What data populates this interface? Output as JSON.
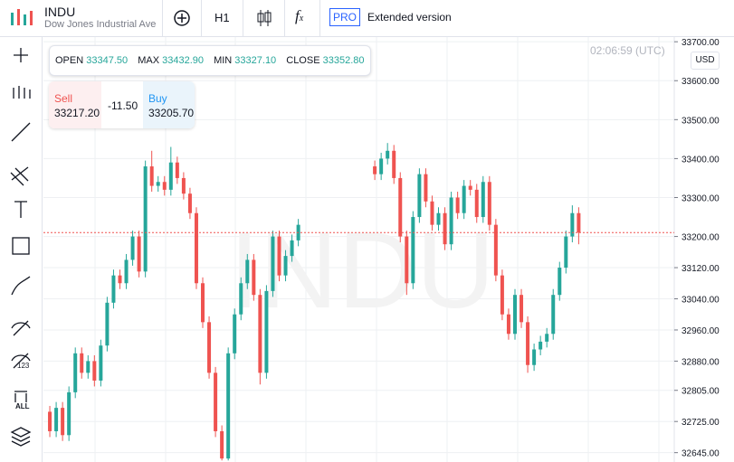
{
  "header": {
    "symbol": "INDU",
    "name": "Dow Jones Industrial Ave",
    "interval": "H1",
    "pro": "PRO",
    "extended": "Extended version"
  },
  "ohlc": {
    "open_label": "OPEN",
    "open": "33347.50",
    "max_label": "MAX",
    "max": "33432.90",
    "min_label": "MIN",
    "min": "33327.10",
    "close_label": "CLOSE",
    "close": "33352.80"
  },
  "trade": {
    "sell_label": "Sell",
    "sell": "33217.20",
    "spread": "-11.50",
    "buy_label": "Buy",
    "buy": "33205.70"
  },
  "clock": "02:06:59 (UTC)",
  "currency": "USD",
  "toolbar": {
    "badge_1": "123",
    "badge_2": "ALL"
  },
  "chart_data": {
    "type": "candlestick",
    "watermark": "INDU",
    "up_color": "#26a69a",
    "down_color": "#ef5350",
    "x": [
      0,
      1,
      2,
      3,
      4,
      5,
      6,
      7,
      8,
      9,
      10,
      11,
      12,
      13,
      14,
      15,
      16,
      17,
      18,
      19,
      20,
      21,
      22,
      23,
      24,
      25,
      26,
      27,
      28,
      29,
      30,
      31,
      32,
      33,
      34,
      35,
      36,
      37,
      38,
      39,
      51,
      52,
      53,
      54,
      55,
      56,
      57,
      58,
      59,
      60,
      61,
      62,
      63,
      64,
      65,
      66,
      67,
      68,
      69,
      70,
      71,
      72,
      73,
      74,
      75,
      76,
      77,
      78,
      79,
      80,
      81,
      82,
      83
    ],
    "open": [
      32750,
      32700,
      32760,
      32690,
      32800,
      32900,
      32850,
      32880,
      32830,
      32920,
      33030,
      33100,
      33080,
      33140,
      33200,
      33110,
      33380,
      33330,
      33340,
      33320,
      33390,
      33350,
      33310,
      33260,
      33080,
      32980,
      32850,
      32700,
      32630,
      32900,
      33000,
      33080,
      33140,
      33050,
      32850,
      33060,
      33200,
      33100,
      33150,
      33190,
      33380,
      33360,
      33400,
      33420,
      33350,
      33200,
      33080,
      33250,
      33360,
      33290,
      33230,
      33260,
      33180,
      33300,
      33260,
      33330,
      33320,
      33250,
      33340,
      33230,
      33100,
      33000,
      32950,
      33050,
      32980,
      32870,
      32910,
      32930,
      32950,
      33050,
      33120,
      33200,
      33260
    ],
    "high": [
      32765,
      32775,
      32775,
      32815,
      32915,
      32915,
      32895,
      32895,
      32935,
      33045,
      33115,
      33115,
      33155,
      33215,
      33215,
      33395,
      33420,
      33355,
      33355,
      33430,
      33405,
      33365,
      33325,
      33275,
      33095,
      32995,
      32865,
      32715,
      32915,
      33015,
      33095,
      33155,
      33155,
      33065,
      33075,
      33215,
      33215,
      33165,
      33205,
      33245,
      33395,
      33415,
      33440,
      33435,
      33365,
      33215,
      33265,
      33375,
      33375,
      33305,
      33275,
      33275,
      33315,
      33315,
      33345,
      33345,
      33335,
      33355,
      33355,
      33245,
      33115,
      33015,
      33065,
      33065,
      32995,
      32925,
      32945,
      32965,
      33065,
      33135,
      33215,
      33280,
      33275
    ],
    "low": [
      32685,
      32685,
      32675,
      32675,
      32785,
      32835,
      32835,
      32815,
      32815,
      32905,
      33015,
      33065,
      33065,
      33125,
      33095,
      33095,
      33315,
      33315,
      33305,
      33305,
      33335,
      33295,
      33245,
      33065,
      32965,
      32835,
      32685,
      32625,
      32625,
      32885,
      32985,
      33065,
      33035,
      32820,
      32835,
      33045,
      33085,
      33085,
      33135,
      33175,
      33345,
      33345,
      33385,
      33335,
      33185,
      33050,
      33065,
      33235,
      33275,
      33215,
      33215,
      33165,
      33165,
      33245,
      33245,
      33305,
      33235,
      33235,
      33215,
      33085,
      32985,
      32935,
      32935,
      32965,
      32850,
      32855,
      32895,
      32915,
      32935,
      33035,
      33105,
      33185,
      33180
    ],
    "close": [
      32700,
      32760,
      32690,
      32800,
      32900,
      32850,
      32880,
      32830,
      32920,
      33030,
      33100,
      33080,
      33140,
      33200,
      33110,
      33380,
      33330,
      33340,
      33320,
      33390,
      33350,
      33310,
      33260,
      33080,
      32980,
      32850,
      32700,
      32630,
      32900,
      33000,
      33080,
      33140,
      33050,
      32850,
      33060,
      33200,
      33100,
      33150,
      33190,
      33230,
      33360,
      33400,
      33420,
      33350,
      33200,
      33080,
      33250,
      33360,
      33290,
      33230,
      33260,
      33180,
      33300,
      33260,
      33330,
      33320,
      33250,
      33340,
      33230,
      33100,
      33000,
      32950,
      33050,
      32980,
      32870,
      32910,
      32930,
      32950,
      33050,
      33120,
      33200,
      33260,
      33210
    ],
    "xlim": [
      -1,
      98
    ],
    "ylim": [
      32621,
      33712
    ],
    "yticks": [
      {
        "value": 33700,
        "label": "33700.00"
      },
      {
        "value": 33600,
        "label": "33600.00"
      },
      {
        "value": 33500,
        "label": "33500.00"
      },
      {
        "value": 33400,
        "label": "33400.00"
      },
      {
        "value": 33300,
        "label": "33300.00"
      },
      {
        "value": 33200,
        "label": "33200.00"
      },
      {
        "value": 33120,
        "label": "33120.00"
      },
      {
        "value": 33040,
        "label": "33040.00"
      },
      {
        "value": 32960,
        "label": "32960.00"
      },
      {
        "value": 32880,
        "label": "32880.00"
      },
      {
        "value": 32805,
        "label": "32805.00"
      },
      {
        "value": 32725,
        "label": "32725.00"
      },
      {
        "value": 32645,
        "label": "32645.00"
      }
    ],
    "grid": true
  }
}
